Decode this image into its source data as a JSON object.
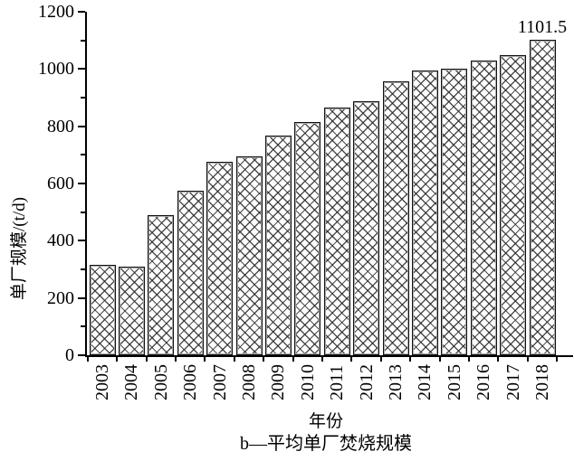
{
  "chart_data": {
    "type": "bar",
    "title": "",
    "xlabel": "年份",
    "ylabel": "单厂规模/(t/d)",
    "caption": "b—平均单厂焚烧规模",
    "categories": [
      "2003",
      "2004",
      "2005",
      "2006",
      "2007",
      "2008",
      "2009",
      "2010",
      "2011",
      "2012",
      "2013",
      "2014",
      "2015",
      "2016",
      "2017",
      "2018"
    ],
    "values": [
      315,
      308,
      489,
      575,
      677,
      696,
      766,
      814,
      865,
      888,
      958,
      994,
      1002,
      1028,
      1047,
      1101.5
    ],
    "ylim": [
      0,
      1200
    ],
    "ytick_labels": [
      "0",
      "200",
      "400",
      "600",
      "800",
      "1000",
      "1200"
    ],
    "ytick_major_step": 200,
    "ytick_minor_step": 100,
    "annotation": {
      "text": "1101.5",
      "category": "2018"
    },
    "legend": [],
    "grid": "off",
    "style": {
      "bar_fill": "#ffffff",
      "bar_hatch": "crosshatch",
      "bar_edge_color": "#111111",
      "hatch_color": "#232323",
      "axis_color": "#000000",
      "text_color": "#000000"
    }
  }
}
